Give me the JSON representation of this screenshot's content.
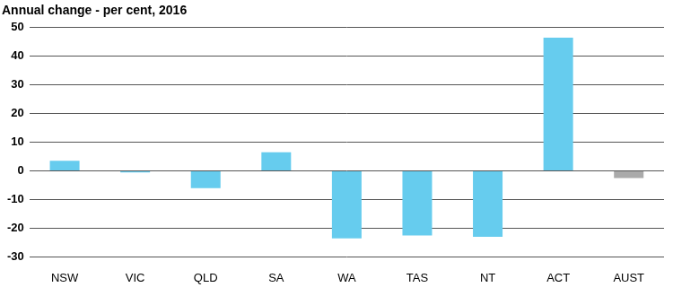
{
  "chart_data": {
    "type": "bar",
    "title": "Annual change - per cent, 2016",
    "categories": [
      "NSW",
      "VIC",
      "QLD",
      "SA",
      "WA",
      "TAS",
      "NT",
      "ACT",
      "AUST"
    ],
    "values": [
      3.5,
      -0.5,
      -6,
      6.5,
      -23.5,
      -22.5,
      -23,
      46.5,
      -2.5
    ],
    "colors": [
      "#66ccee",
      "#66ccee",
      "#66ccee",
      "#66ccee",
      "#66ccee",
      "#66ccee",
      "#66ccee",
      "#66ccee",
      "#aaaaaa"
    ],
    "ylim": [
      -30,
      50
    ],
    "yticks": [
      -30,
      -20,
      -10,
      0,
      10,
      20,
      30,
      40,
      50
    ],
    "grid": true
  }
}
